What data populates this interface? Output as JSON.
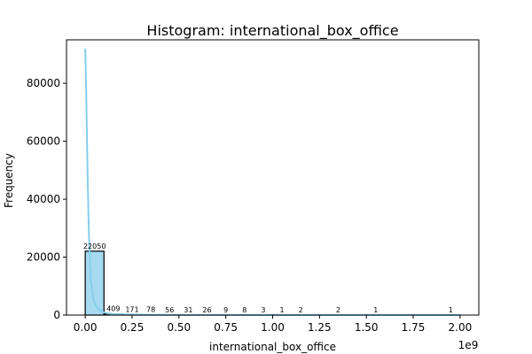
{
  "chart_data": {
    "type": "bar",
    "title": "Histogram: international_box_office",
    "xlabel": "international_box_office",
    "ylabel": "Frequency",
    "x_offset_text": "1e9",
    "xlim": [
      -0.1,
      2.1
    ],
    "ylim": [
      0,
      95000
    ],
    "x_ticks": [
      0.0,
      0.25,
      0.5,
      0.75,
      1.0,
      1.25,
      1.5,
      1.75,
      2.0
    ],
    "x_tick_labels": [
      "0.00",
      "0.25",
      "0.50",
      "0.75",
      "1.00",
      "1.25",
      "1.50",
      "1.75",
      "2.00"
    ],
    "y_ticks": [
      0,
      20000,
      40000,
      60000,
      80000
    ],
    "y_tick_labels": [
      "0",
      "20000",
      "40000",
      "60000",
      "80000"
    ],
    "bin_width": 0.1,
    "bins": [
      {
        "start": 0.0,
        "count": 22050,
        "label": "22050"
      },
      {
        "start": 0.1,
        "count": 409,
        "label": "409"
      },
      {
        "start": 0.2,
        "count": 171,
        "label": "171"
      },
      {
        "start": 0.3,
        "count": 78,
        "label": "78"
      },
      {
        "start": 0.4,
        "count": 56,
        "label": "56"
      },
      {
        "start": 0.5,
        "count": 31,
        "label": "31"
      },
      {
        "start": 0.6,
        "count": 26,
        "label": "26"
      },
      {
        "start": 0.7,
        "count": 9,
        "label": "9"
      },
      {
        "start": 0.8,
        "count": 8,
        "label": "8"
      },
      {
        "start": 0.9,
        "count": 3,
        "label": "3"
      },
      {
        "start": 1.0,
        "count": 1,
        "label": "1"
      },
      {
        "start": 1.1,
        "count": 2,
        "label": "2"
      },
      {
        "start": 1.3,
        "count": 2,
        "label": "2"
      },
      {
        "start": 1.5,
        "count": 1,
        "label": "1"
      },
      {
        "start": 1.9,
        "count": 1,
        "label": "1"
      }
    ],
    "kde": {
      "x": [
        0.0,
        0.005,
        0.01,
        0.015,
        0.02,
        0.03,
        0.04,
        0.05,
        0.06,
        0.08,
        0.1,
        0.12,
        0.15,
        0.2,
        0.3,
        0.5,
        1.0,
        1.5,
        2.0
      ],
      "y": [
        92000,
        78000,
        58000,
        41000,
        27000,
        12000,
        6500,
        4200,
        2800,
        1500,
        900,
        600,
        400,
        250,
        120,
        50,
        10,
        5,
        2
      ]
    },
    "colors": {
      "bar_fill": "#87ceeb",
      "bar_edge": "#000000",
      "kde_line": "#87ceeb"
    }
  }
}
